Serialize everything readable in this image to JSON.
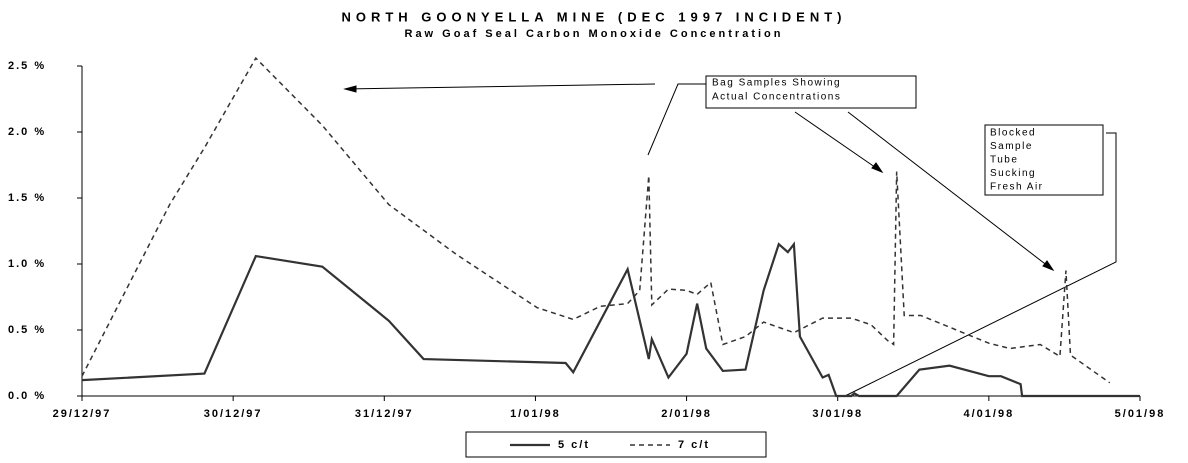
{
  "chart_data": {
    "type": "line",
    "title": "NORTH GOONYELLA MINE (DEC 1997 INCIDENT)",
    "subtitle": "Raw Goaf Seal Carbon Monoxide Concentration",
    "annotations": [
      [
        "Bag Samples Showing",
        "Actual Concentrations"
      ],
      [
        "Blocked",
        "Sample",
        "Tube",
        "Sucking",
        "Fresh Air"
      ]
    ],
    "xlim": [
      0,
      7
    ],
    "xticks": [
      {
        "value": 0,
        "label": "29/12/97"
      },
      {
        "value": 1,
        "label": "30/12/97"
      },
      {
        "value": 2,
        "label": "31/12/97"
      },
      {
        "value": 3,
        "label": "1/01/98"
      },
      {
        "value": 4,
        "label": "2/01/98"
      },
      {
        "value": 5,
        "label": "3/01/98"
      },
      {
        "value": 6,
        "label": "4/01/98"
      },
      {
        "value": 7,
        "label": "5/01/98"
      }
    ],
    "ylim": [
      0,
      2.5
    ],
    "yticks": [
      {
        "value": 0,
        "label": "0.0 %"
      },
      {
        "value": 0.5,
        "label": "0.5 %"
      },
      {
        "value": 1,
        "label": "1.0 %"
      },
      {
        "value": 1.5,
        "label": "1.5 %"
      },
      {
        "value": 2,
        "label": "2.0 %"
      },
      {
        "value": 2.5,
        "label": "2.5 %"
      }
    ],
    "series": [
      {
        "name": "5 c/t",
        "color": "#333333",
        "dash": "solid",
        "x": [
          0,
          0.81,
          1.15,
          1.59,
          2.03,
          2.26,
          3.2,
          3.25,
          3.61,
          3.75,
          3.77,
          3.88,
          4.0,
          4.07,
          4.13,
          4.24,
          4.39,
          4.51,
          4.61,
          4.67,
          4.71,
          4.75,
          4.9,
          4.94,
          4.99,
          5.09,
          5.11,
          5.14,
          5.39,
          5.54,
          5.74,
          6.0,
          6.08,
          6.21,
          6.22,
          7
        ],
        "values": [
          0.12,
          0.17,
          1.06,
          0.98,
          0.57,
          0.28,
          0.25,
          0.18,
          0.96,
          0.28,
          0.43,
          0.14,
          0.32,
          0.7,
          0.36,
          0.19,
          0.2,
          0.8,
          1.15,
          1.09,
          1.15,
          0.45,
          0.14,
          0.16,
          0,
          0,
          0.02,
          0,
          0,
          0.2,
          0.23,
          0.15,
          0.15,
          0.09,
          0,
          0
        ]
      },
      {
        "name": "7 c/t",
        "color": "#333333",
        "dash": "dashed",
        "x": [
          0,
          0.58,
          0.81,
          1.15,
          1.59,
          2.03,
          2.48,
          3.01,
          3.25,
          3.43,
          3.61,
          3.69,
          3.75,
          3.77,
          3.88,
          4.0,
          4.07,
          4.16,
          4.24,
          4.39,
          4.51,
          4.71,
          4.9,
          5.09,
          5.22,
          5.33,
          5.37,
          5.39,
          5.44,
          5.55,
          6.0,
          6.14,
          6.34,
          6.47,
          6.51,
          6.54,
          6.8
        ],
        "values": [
          0.15,
          1.45,
          1.88,
          2.56,
          2.05,
          1.45,
          1.07,
          0.67,
          0.58,
          0.68,
          0.7,
          0.8,
          1.67,
          0.69,
          0.81,
          0.8,
          0.77,
          0.86,
          0.39,
          0.45,
          0.56,
          0.48,
          0.59,
          0.59,
          0.54,
          0.42,
          0.39,
          1.7,
          0.61,
          0.61,
          0.4,
          0.36,
          0.39,
          0.3,
          0.95,
          0.31,
          0.1
        ]
      }
    ]
  }
}
